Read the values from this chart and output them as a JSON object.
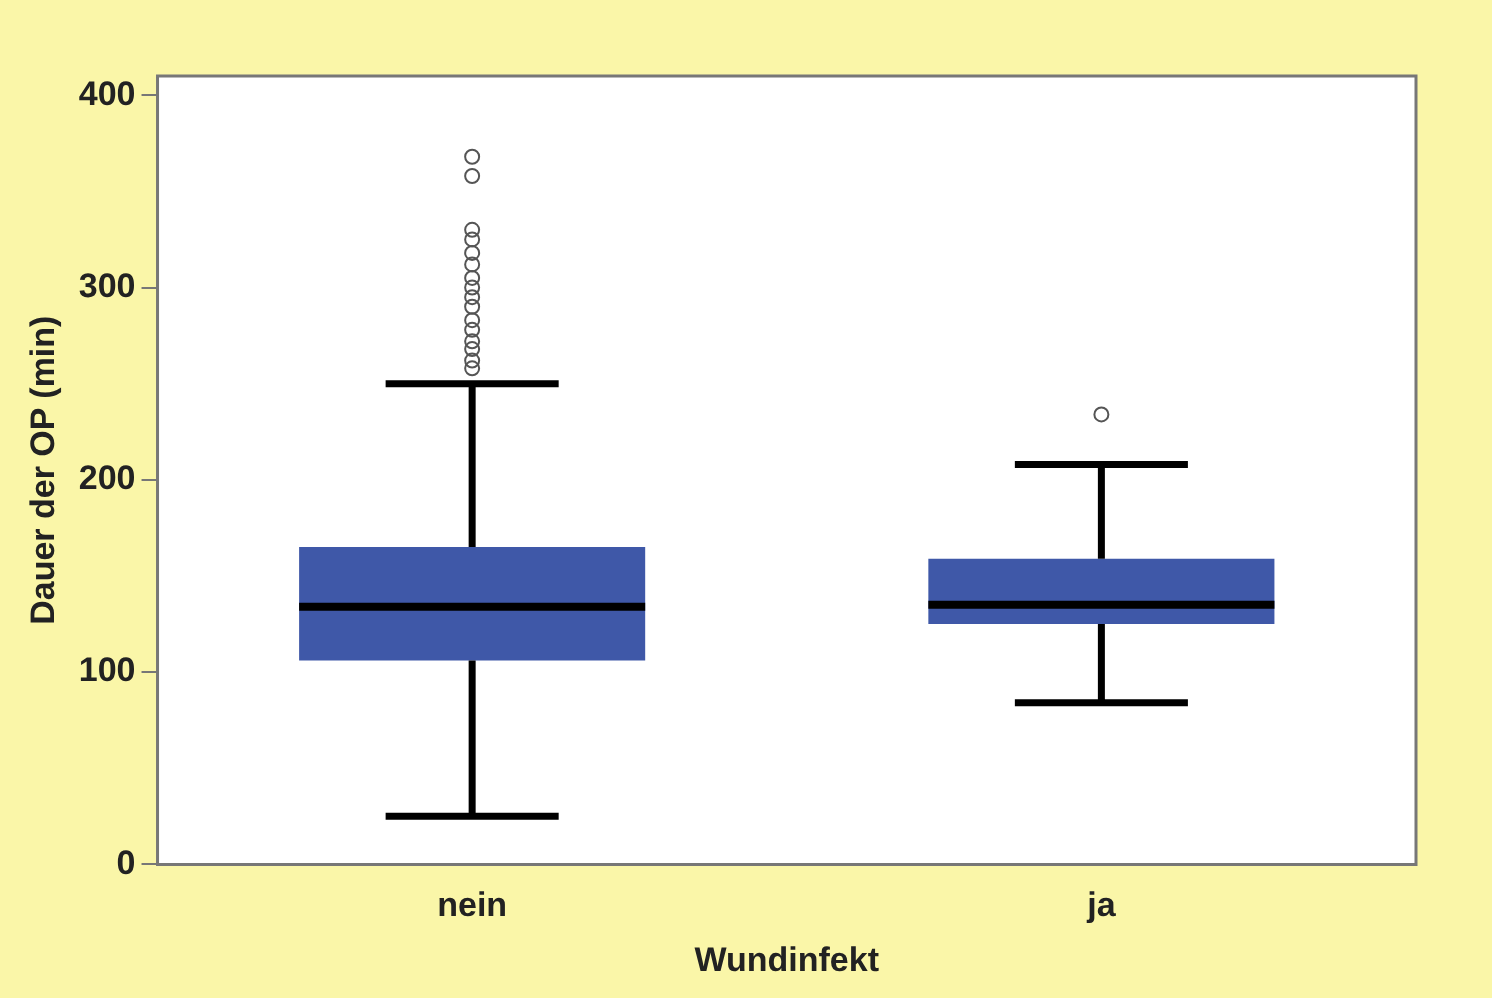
{
  "chart_data": {
    "type": "box",
    "xlabel": "Wundinfekt",
    "ylabel": "Dauer der OP (min)",
    "categories": [
      "nein",
      "ja"
    ],
    "color": "#3f58a8",
    "boxes": [
      {
        "low": 25,
        "q1": 106,
        "median": 134,
        "q3": 165,
        "high": 250,
        "outliers": [
          258,
          262,
          268,
          272,
          278,
          283,
          290,
          295,
          300,
          305,
          312,
          318,
          325,
          330,
          358,
          368
        ]
      },
      {
        "low": 84,
        "q1": 125,
        "median": 135,
        "q3": 159,
        "high": 208,
        "outliers": [
          234
        ]
      }
    ],
    "ylim": [
      0,
      410
    ],
    "yticks": [
      0,
      100,
      200,
      300,
      400
    ],
    "grid": false,
    "legend": false
  }
}
